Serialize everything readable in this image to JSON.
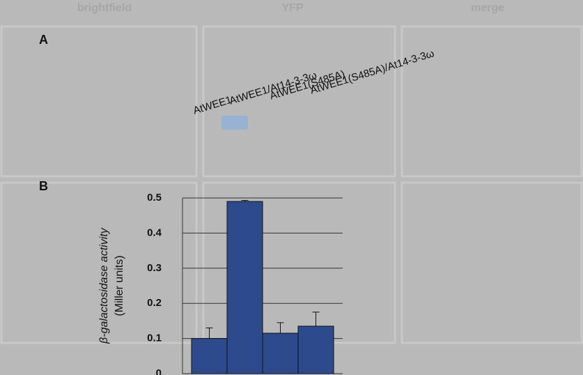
{
  "header": [
    "brightfield",
    "YFP",
    "merge"
  ],
  "panel_labels": [
    "A",
    "B"
  ],
  "chart_data": {
    "type": "bar",
    "categories": [
      "AtWEE1",
      "AtWEE1/At14-3-3ω",
      "AtWEE1(S485A)",
      "AtWEE1(S485A)/At14-3-3ω"
    ],
    "values": [
      0.1,
      0.49,
      0.115,
      0.135
    ],
    "errors": [
      0.03,
      0.003,
      0.03,
      0.04
    ],
    "color": "#2c4a8c",
    "y_label": [
      "β-galactosidase activity",
      "(Miller units)"
    ],
    "ylim": [
      0,
      0.5
    ],
    "yticks": [
      0,
      0.1,
      0.2,
      0.3,
      0.4,
      0.5
    ],
    "grid": true
  }
}
